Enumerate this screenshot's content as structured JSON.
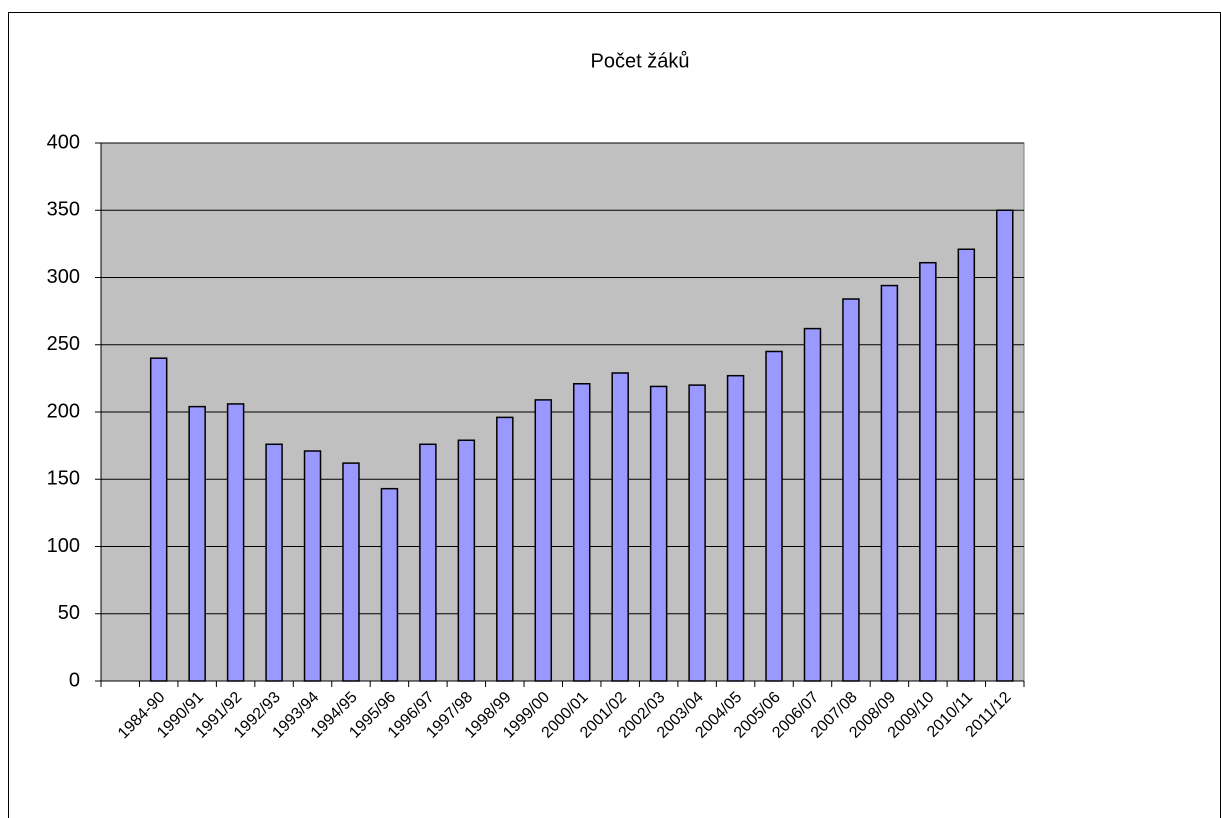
{
  "chart_data": {
    "type": "bar",
    "title": "Počet žáků",
    "categories": [
      null,
      "1984-90",
      "1990/91",
      "1991/92",
      "1992/93",
      "1993/94",
      "1994/95",
      "1995/96",
      "1996/97",
      "1997/98",
      "1998/99",
      "1999/00",
      "2000/01",
      "2001/02",
      "2002/03",
      "2003/04",
      "2004/05",
      "2005/06",
      "2006/07",
      "2007/08",
      "2008/09",
      "2009/10",
      "2010/11",
      "2011/12"
    ],
    "values": [
      null,
      240,
      204,
      206,
      176,
      171,
      162,
      143,
      176,
      179,
      196,
      209,
      221,
      229,
      219,
      220,
      227,
      245,
      262,
      284,
      294,
      311,
      321,
      350
    ],
    "color": "#9999ff",
    "ylim": [
      0,
      400
    ],
    "yticks": [
      0,
      50,
      100,
      150,
      200,
      250,
      300,
      350,
      400
    ],
    "grid": true
  }
}
